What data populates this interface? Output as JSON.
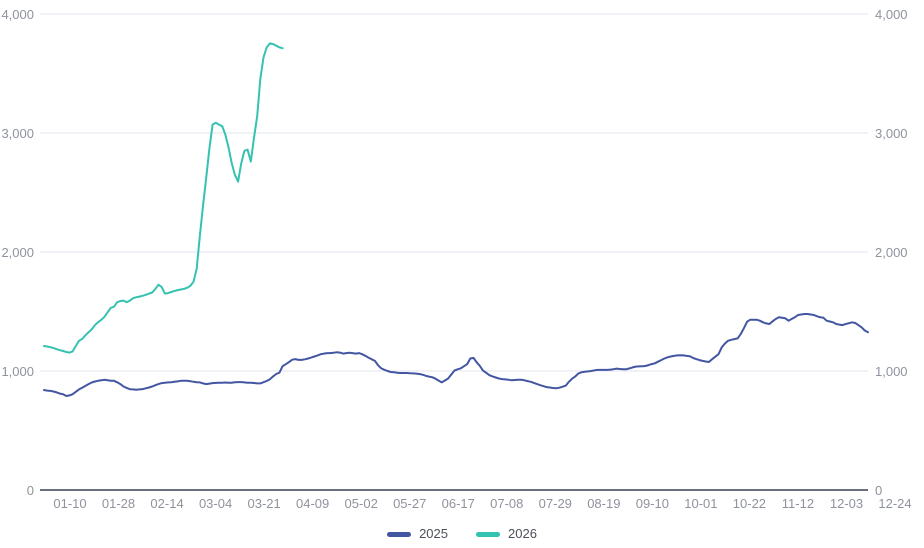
{
  "chart_data": {
    "type": "line",
    "title": "",
    "x_axis": {
      "tick_labels": [
        "01-10",
        "01-28",
        "02-14",
        "03-04",
        "03-21",
        "04-09",
        "05-02",
        "05-27",
        "06-17",
        "07-08",
        "07-29",
        "08-19",
        "09-10",
        "10-01",
        "10-22",
        "11-12",
        "12-03",
        "12-24"
      ]
    },
    "y_axis": {
      "min": 0,
      "max": 4000,
      "tick_values": [
        0,
        1000,
        2000,
        3000,
        4000
      ],
      "tick_labels": [
        "0",
        "1,000",
        "2,000",
        "3,000",
        "4,000"
      ],
      "mirrored_right": true
    },
    "series": [
      {
        "name": "2025",
        "color": "#4356A2",
        "values": [
          840,
          835,
          833,
          828,
          820,
          810,
          805,
          790,
          795,
          805,
          825,
          845,
          860,
          875,
          890,
          903,
          912,
          918,
          922,
          926,
          922,
          918,
          918,
          905,
          890,
          870,
          858,
          847,
          845,
          842,
          845,
          848,
          855,
          861,
          870,
          881,
          890,
          898,
          901,
          904,
          906,
          909,
          913,
          918,
          918,
          918,
          914,
          909,
          906,
          904,
          896,
          890,
          894,
          898,
          900,
          902,
          902,
          903,
          902,
          902,
          905,
          907,
          907,
          904,
          902,
          902,
          899,
          896,
          896,
          906,
          916,
          930,
          955,
          975,
          986,
          1040,
          1057,
          1075,
          1095,
          1100,
          1093,
          1093,
          1098,
          1105,
          1113,
          1122,
          1131,
          1141,
          1146,
          1150,
          1150,
          1153,
          1158,
          1155,
          1146,
          1150,
          1153,
          1150,
          1146,
          1150,
          1141,
          1128,
          1113,
          1098,
          1085,
          1048,
          1023,
          1010,
          1000,
          992,
          989,
          986,
          983,
          983,
          983,
          981,
          980,
          978,
          975,
          969,
          960,
          953,
          948,
          936,
          920,
          904,
          920,
          936,
          970,
          1003,
          1014,
          1023,
          1040,
          1057,
          1105,
          1110,
          1073,
          1042,
          1003,
          985,
          965,
          955,
          945,
          937,
          932,
          929,
          927,
          922,
          924,
          926,
          926,
          922,
          915,
          909,
          900,
          890,
          881,
          872,
          865,
          861,
          857,
          855,
          860,
          868,
          877,
          909,
          935,
          955,
          980,
          990,
          993,
          997,
          1000,
          1005,
          1009,
          1009,
          1009,
          1009,
          1012,
          1015,
          1020,
          1017,
          1014,
          1014,
          1022,
          1030,
          1037,
          1039,
          1040,
          1042,
          1050,
          1058,
          1065,
          1078,
          1092,
          1105,
          1115,
          1122,
          1127,
          1131,
          1133,
          1131,
          1127,
          1124,
          1110,
          1100,
          1092,
          1085,
          1080,
          1076,
          1099,
          1120,
          1141,
          1198,
          1230,
          1254,
          1262,
          1268,
          1274,
          1310,
          1360,
          1414,
          1431,
          1431,
          1431,
          1423,
          1409,
          1400,
          1395,
          1418,
          1437,
          1451,
          1447,
          1443,
          1423,
          1437,
          1451,
          1471,
          1475,
          1479,
          1479,
          1475,
          1471,
          1460,
          1451,
          1447,
          1423,
          1416,
          1409,
          1395,
          1390,
          1386,
          1395,
          1402,
          1409,
          1403,
          1385,
          1367,
          1340,
          1325
        ]
      },
      {
        "name": "2026",
        "color": "#35C2B0",
        "values": [
          1210,
          1206,
          1200,
          1193,
          1183,
          1175,
          1168,
          1160,
          1155,
          1165,
          1210,
          1254,
          1270,
          1300,
          1325,
          1350,
          1385,
          1410,
          1430,
          1455,
          1493,
          1530,
          1540,
          1578,
          1588,
          1592,
          1578,
          1592,
          1612,
          1620,
          1625,
          1632,
          1640,
          1650,
          1660,
          1690,
          1725,
          1705,
          1650,
          1655,
          1665,
          1672,
          1680,
          1685,
          1690,
          1700,
          1715,
          1750,
          1860,
          2140,
          2395,
          2630,
          2870,
          3071,
          3086,
          3071,
          3057,
          2987,
          2880,
          2747,
          2649,
          2592,
          2747,
          2850,
          2860,
          2760,
          2960,
          3142,
          3452,
          3635,
          3719,
          3753,
          3747,
          3734,
          3719,
          3713
        ]
      }
    ],
    "legend": {
      "position": "bottom-center",
      "items": [
        "2025",
        "2026"
      ]
    },
    "grid": {
      "gridlines": true,
      "gridline_color": "#E0E6F1",
      "axis_line_color": "#6B7080",
      "label_color": "#8F939D",
      "legend_text_color": "#4C5058",
      "background": "#FFFFFF"
    }
  }
}
